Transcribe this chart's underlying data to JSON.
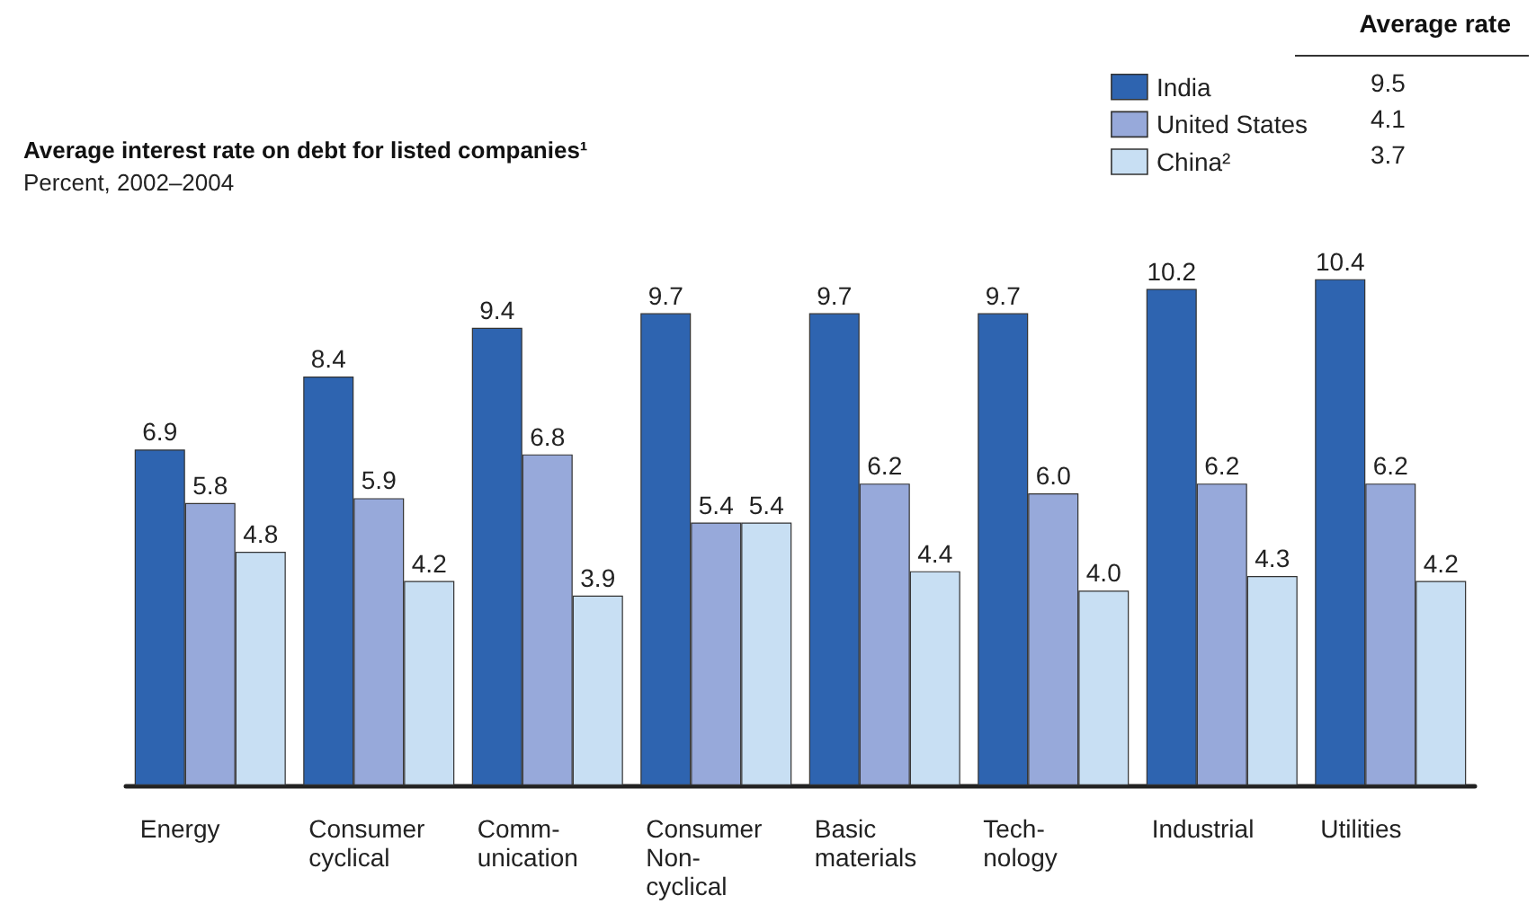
{
  "chart_data": {
    "type": "bar",
    "title": "Average interest rate on debt for listed companies¹",
    "subtitle": "Percent, 2002–2004",
    "legend_title": "Average rate",
    "annotations": [
      "9.5",
      "4.1",
      "3.7"
    ],
    "categories": [
      "Energy",
      "Consumer\ncyclical",
      "Comm-\nunication",
      "Consumer\nNon-\ncyclical",
      "Basic\nmaterials",
      "Tech-\nnology",
      "Industrial",
      "Utilities"
    ],
    "series": [
      {
        "name": "India",
        "color": "#2e64b0",
        "values": [
          6.9,
          8.4,
          9.4,
          9.7,
          9.7,
          9.7,
          10.2,
          10.4
        ],
        "value_labels": [
          "6.9",
          "8.4",
          "9.4",
          "9.7",
          "9.7",
          "9.7",
          "10.2",
          "10.4"
        ]
      },
      {
        "name": "United States",
        "color": "#97a9da",
        "values": [
          5.8,
          5.9,
          6.8,
          5.4,
          6.2,
          6.0,
          6.2,
          6.2
        ],
        "value_labels": [
          "5.8",
          "5.9",
          "6.8",
          "5.4",
          "6.2",
          "6.0",
          "6.2",
          "6.2"
        ]
      },
      {
        "name": "China²",
        "color": "#c8dff3",
        "values": [
          4.8,
          4.2,
          3.9,
          5.4,
          4.4,
          4.0,
          4.3,
          4.2
        ],
        "value_labels": [
          "4.8",
          "4.2",
          "3.9",
          "5.4",
          "4.4",
          "4.0",
          "4.3",
          "4.2"
        ]
      }
    ],
    "legend": "top right"
  }
}
